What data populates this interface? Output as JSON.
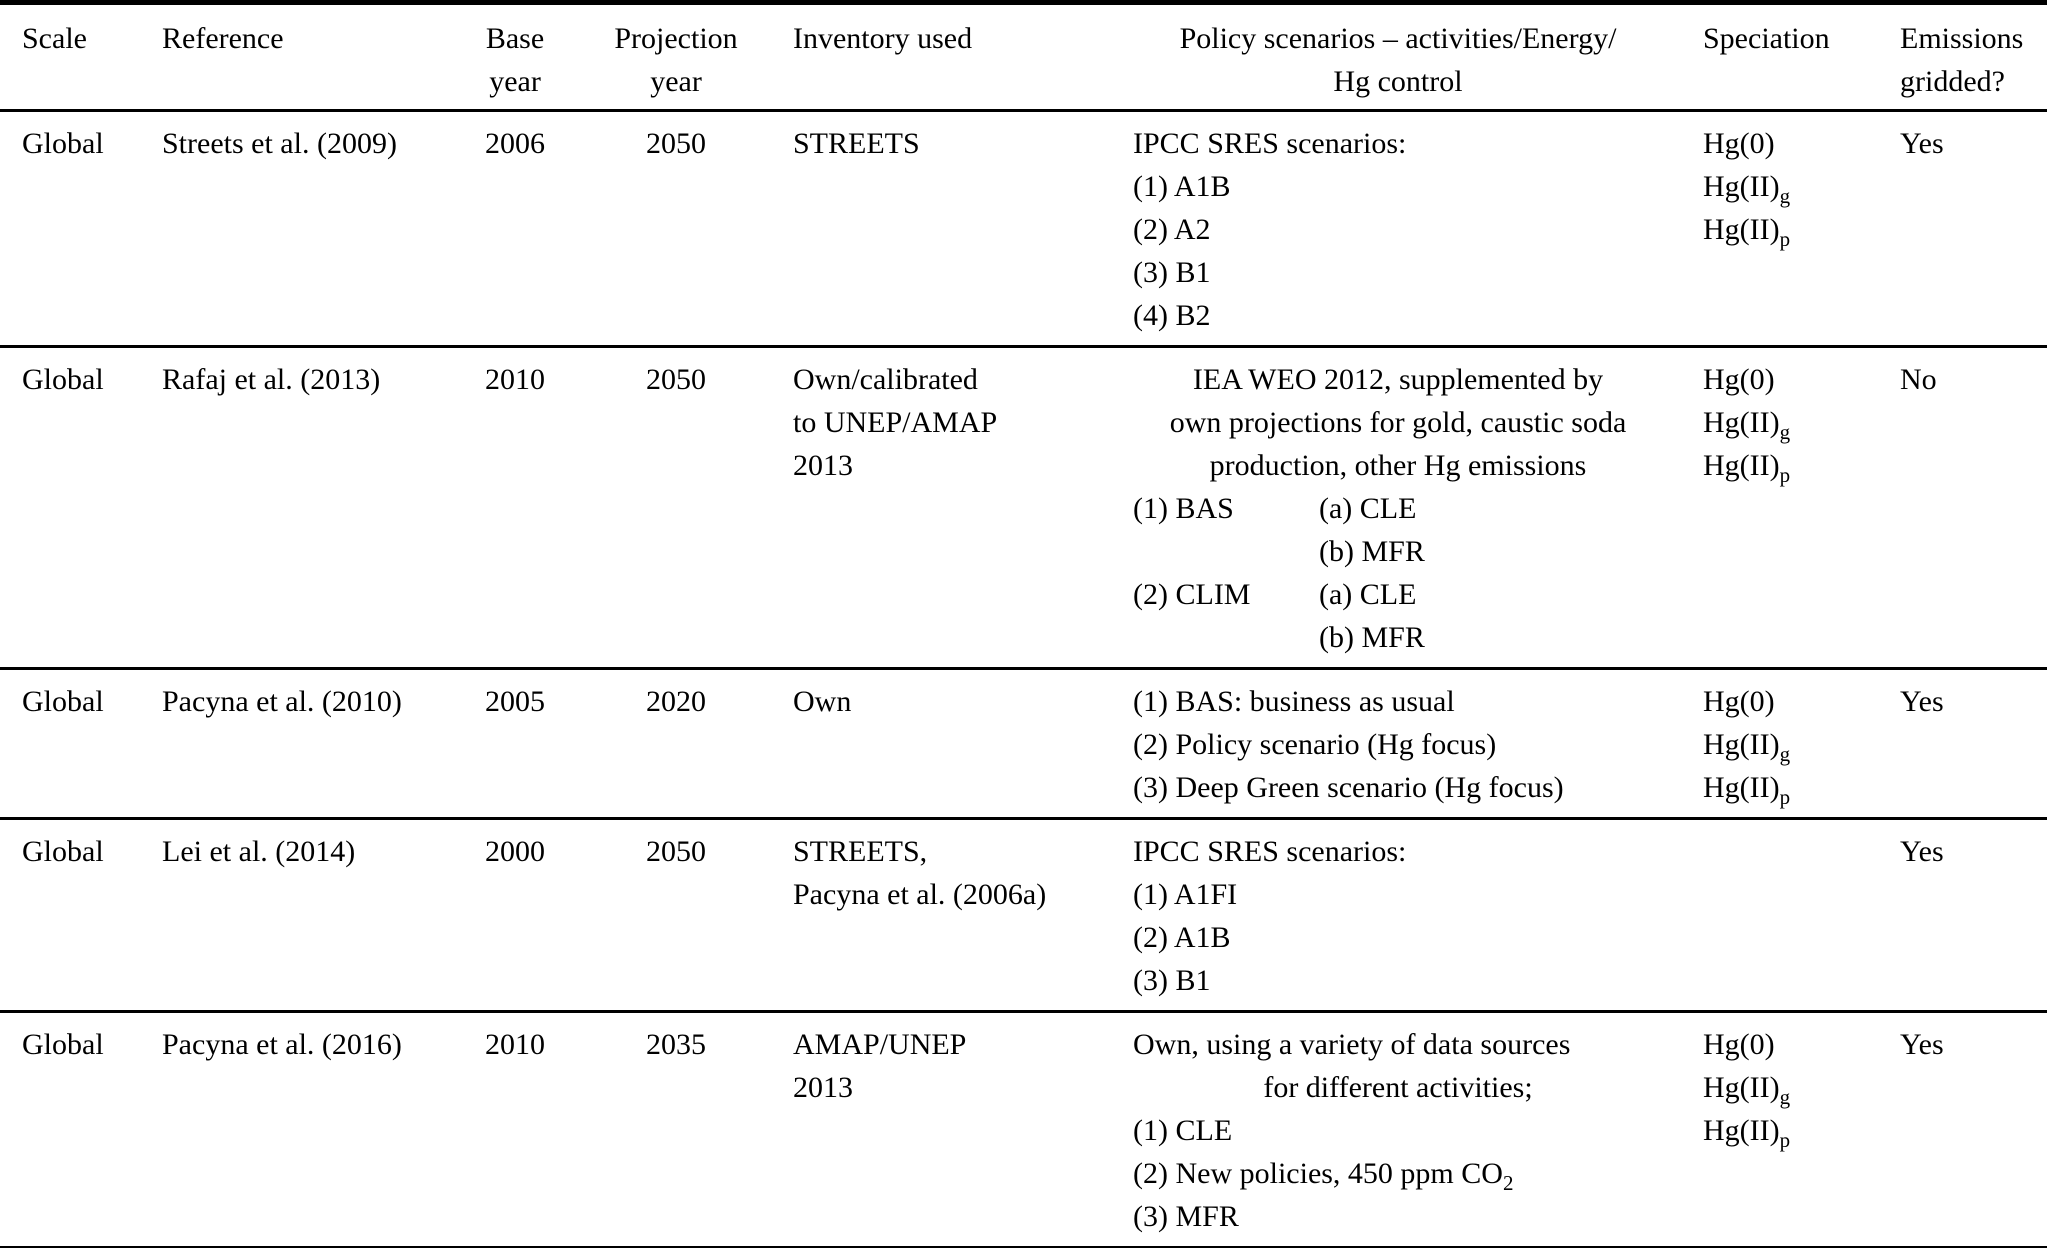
{
  "table": {
    "columns": [
      {
        "id": "scale",
        "lines": [
          "Scale"
        ]
      },
      {
        "id": "reference",
        "lines": [
          "Reference"
        ]
      },
      {
        "id": "base_year",
        "lines": [
          "Base",
          "year"
        ]
      },
      {
        "id": "projection_year",
        "lines": [
          "Projection",
          "year"
        ]
      },
      {
        "id": "inventory",
        "lines": [
          "Inventory used"
        ]
      },
      {
        "id": "policy",
        "lines": [
          "Policy scenarios – activities/Energy/",
          "Hg control"
        ]
      },
      {
        "id": "speciation",
        "lines": [
          "Speciation"
        ]
      },
      {
        "id": "gridded",
        "lines": [
          "Emissions",
          "gridded?"
        ]
      }
    ],
    "rows": [
      {
        "scale": "Global",
        "reference": "Streets et al. (2009)",
        "base_year": "2006",
        "projection_year": "2050",
        "inventory": [
          "STREETS"
        ],
        "policy": [
          {
            "align": "left",
            "seg": [
              {
                "t": "IPCC SRES scenarios:"
              }
            ]
          },
          {
            "align": "left",
            "seg": [
              {
                "t": "(1) A1B"
              }
            ]
          },
          {
            "align": "left",
            "seg": [
              {
                "t": "(2) A2"
              }
            ]
          },
          {
            "align": "left",
            "seg": [
              {
                "t": "(3) B1"
              }
            ]
          },
          {
            "align": "left",
            "seg": [
              {
                "t": "(4) B2"
              }
            ]
          }
        ],
        "speciation": [
          [
            {
              "t": "Hg(0)"
            }
          ],
          [
            {
              "t": "Hg(II)"
            },
            {
              "s": "g"
            }
          ],
          [
            {
              "t": "Hg(II)"
            },
            {
              "s": "p"
            }
          ]
        ],
        "gridded": "Yes"
      },
      {
        "scale": "Global",
        "reference": "Rafaj et al. (2013)",
        "base_year": "2010",
        "projection_year": "2050",
        "inventory": [
          "Own/calibrated",
          "to UNEP/AMAP",
          "2013"
        ],
        "policy": [
          {
            "align": "center",
            "seg": [
              {
                "t": "IEA WEO 2012, supplemented by"
              }
            ]
          },
          {
            "align": "center",
            "seg": [
              {
                "t": "own projections for gold, caustic soda"
              }
            ]
          },
          {
            "align": "center",
            "seg": [
              {
                "t": "production, other Hg emissions"
              }
            ]
          },
          {
            "align": "left",
            "cols": [
              "(1) BAS",
              "(a) CLE"
            ]
          },
          {
            "align": "left",
            "cols": [
              "",
              "(b) MFR"
            ]
          },
          {
            "align": "left",
            "cols": [
              "(2) CLIM",
              "(a) CLE"
            ]
          },
          {
            "align": "left",
            "cols": [
              "",
              "(b) MFR"
            ]
          }
        ],
        "speciation": [
          [
            {
              "t": "Hg(0)"
            }
          ],
          [
            {
              "t": "Hg(II)"
            },
            {
              "s": "g"
            }
          ],
          [
            {
              "t": "Hg(II)"
            },
            {
              "s": "p"
            }
          ]
        ],
        "gridded": "No"
      },
      {
        "scale": "Global",
        "reference": "Pacyna et al. (2010)",
        "base_year": "2005",
        "projection_year": "2020",
        "inventory": [
          "Own"
        ],
        "policy": [
          {
            "align": "left",
            "seg": [
              {
                "t": "(1) BAS: business as usual"
              }
            ]
          },
          {
            "align": "left",
            "seg": [
              {
                "t": "(2) Policy scenario (Hg focus)"
              }
            ]
          },
          {
            "align": "left",
            "seg": [
              {
                "t": "(3) Deep Green scenario (Hg focus)"
              }
            ]
          }
        ],
        "speciation": [
          [
            {
              "t": "Hg(0)"
            }
          ],
          [
            {
              "t": "Hg(II)"
            },
            {
              "s": "g"
            }
          ],
          [
            {
              "t": "Hg(II)"
            },
            {
              "s": "p"
            }
          ]
        ],
        "gridded": "Yes"
      },
      {
        "scale": "Global",
        "reference": "Lei et al. (2014)",
        "base_year": "2000",
        "projection_year": "2050",
        "inventory": [
          "STREETS,",
          "Pacyna et al. (2006a)"
        ],
        "policy": [
          {
            "align": "left",
            "seg": [
              {
                "t": "IPCC SRES scenarios:"
              }
            ]
          },
          {
            "align": "left",
            "seg": [
              {
                "t": "(1) A1FI"
              }
            ]
          },
          {
            "align": "left",
            "seg": [
              {
                "t": "(2) A1B"
              }
            ]
          },
          {
            "align": "left",
            "seg": [
              {
                "t": "(3) B1"
              }
            ]
          }
        ],
        "speciation": [],
        "gridded": "Yes"
      },
      {
        "scale": "Global",
        "reference": "Pacyna et al. (2016)",
        "base_year": "2010",
        "projection_year": "2035",
        "inventory": [
          "AMAP/UNEP",
          "2013"
        ],
        "policy": [
          {
            "align": "left",
            "seg": [
              {
                "t": "Own, using a variety of data sources"
              }
            ]
          },
          {
            "align": "center",
            "seg": [
              {
                "t": "for different activities;"
              }
            ]
          },
          {
            "align": "left",
            "seg": [
              {
                "t": "(1) CLE"
              }
            ]
          },
          {
            "align": "left",
            "seg": [
              {
                "t": "(2) New policies, 450 ppm CO"
              },
              {
                "s": "2"
              }
            ]
          },
          {
            "align": "left",
            "seg": [
              {
                "t": "(3) MFR"
              }
            ]
          }
        ],
        "speciation": [
          [
            {
              "t": "Hg(0)"
            }
          ],
          [
            {
              "t": "Hg(II)"
            },
            {
              "s": "g"
            }
          ],
          [
            {
              "t": "Hg(II)"
            },
            {
              "s": "p"
            }
          ]
        ],
        "gridded": "Yes"
      }
    ]
  }
}
